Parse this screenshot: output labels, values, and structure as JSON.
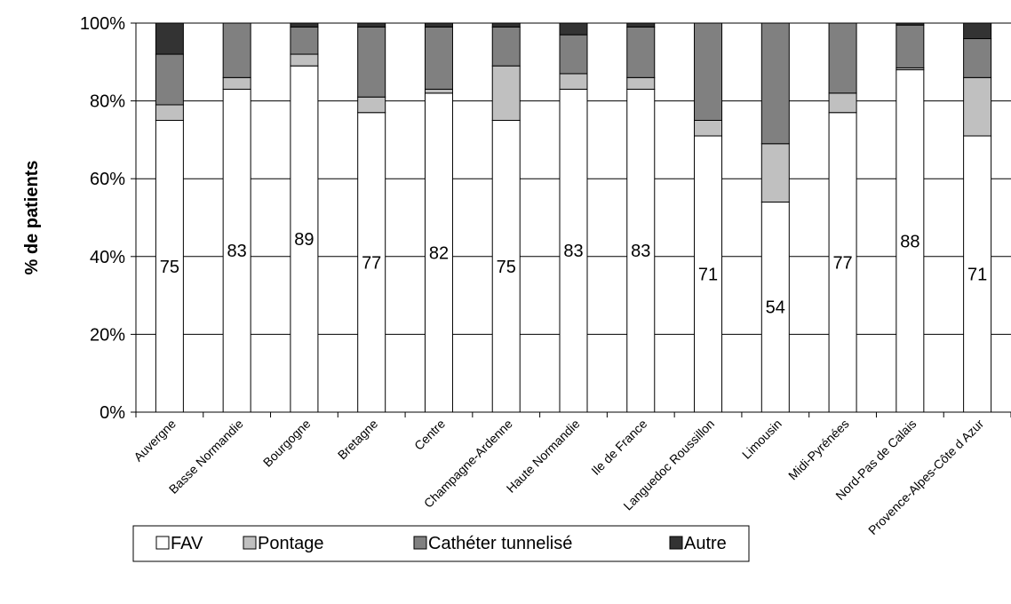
{
  "chart_data": {
    "type": "stacked_bar",
    "y_label": "% de patients",
    "categories": [
      "Auvergne",
      "Basse Normandie",
      "Bourgogne",
      "Bretagne",
      "Centre",
      "Champagne-Ardenne",
      "Haute Normandie",
      "Ile de France",
      "Languedoc Roussillon",
      "Limousin",
      "Midi-Pyrénées",
      "Nord-Pas de Calais",
      "Provence-Alpes-Côte d Azur"
    ],
    "series": [
      {
        "name": "FAV",
        "color": "#ffffff",
        "values": [
          75,
          83,
          89,
          77,
          82,
          75,
          83,
          83,
          71,
          54,
          77,
          88,
          71
        ],
        "labels_shown": true
      },
      {
        "name": "Pontage",
        "color": "#c0c0c0",
        "values": [
          4,
          3,
          3,
          4,
          1,
          14,
          4,
          3,
          4,
          15,
          5,
          0.5,
          15
        ]
      },
      {
        "name": "Cathéter tunnelisé",
        "color": "#808080",
        "values": [
          13,
          14,
          7,
          18,
          16,
          10,
          10,
          13,
          25,
          31,
          18,
          11,
          10
        ]
      },
      {
        "name": "Autre",
        "color": "#333333",
        "values": [
          8,
          0,
          1,
          1,
          1,
          1,
          3,
          1,
          0,
          0,
          0,
          0.5,
          4
        ]
      }
    ],
    "ylim": [
      0,
      100
    ],
    "yticks": [
      {
        "value": 0,
        "label": "0%"
      },
      {
        "value": 20,
        "label": "20%"
      },
      {
        "value": 40,
        "label": "40%"
      },
      {
        "value": 60,
        "label": "60%"
      },
      {
        "value": 80,
        "label": "80%"
      },
      {
        "value": 100,
        "label": "100%"
      }
    ],
    "grid": true
  }
}
